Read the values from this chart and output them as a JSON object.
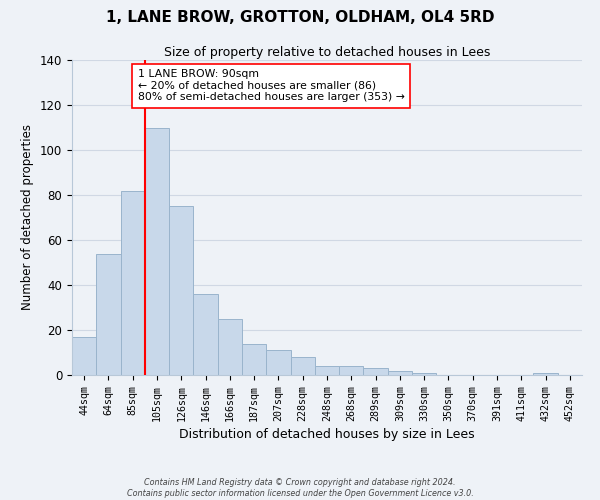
{
  "title": "1, LANE BROW, GROTTON, OLDHAM, OL4 5RD",
  "subtitle": "Size of property relative to detached houses in Lees",
  "xlabel": "Distribution of detached houses by size in Lees",
  "ylabel": "Number of detached properties",
  "bar_color": "#c8d8ea",
  "bar_edgecolor": "#9ab4cc",
  "bin_labels": [
    "44sqm",
    "64sqm",
    "85sqm",
    "105sqm",
    "126sqm",
    "146sqm",
    "166sqm",
    "187sqm",
    "207sqm",
    "228sqm",
    "248sqm",
    "268sqm",
    "289sqm",
    "309sqm",
    "330sqm",
    "350sqm",
    "370sqm",
    "391sqm",
    "411sqm",
    "432sqm",
    "452sqm"
  ],
  "bar_heights": [
    17,
    54,
    82,
    110,
    75,
    36,
    25,
    14,
    11,
    8,
    4,
    4,
    3,
    2,
    1,
    0,
    0,
    0,
    0,
    1,
    0
  ],
  "ylim": [
    0,
    140
  ],
  "yticks": [
    0,
    20,
    40,
    60,
    80,
    100,
    120,
    140
  ],
  "vline_bin_index": 2,
  "vline_color": "red",
  "annotation_text": "1 LANE BROW: 90sqm\n← 20% of detached houses are smaller (86)\n80% of semi-detached houses are larger (353) →",
  "annotation_box_color": "white",
  "annotation_box_edgecolor": "red",
  "footer_line1": "Contains HM Land Registry data © Crown copyright and database right 2024.",
  "footer_line2": "Contains public sector information licensed under the Open Government Licence v3.0.",
  "background_color": "#eef2f7",
  "grid_color": "#d0d8e4"
}
